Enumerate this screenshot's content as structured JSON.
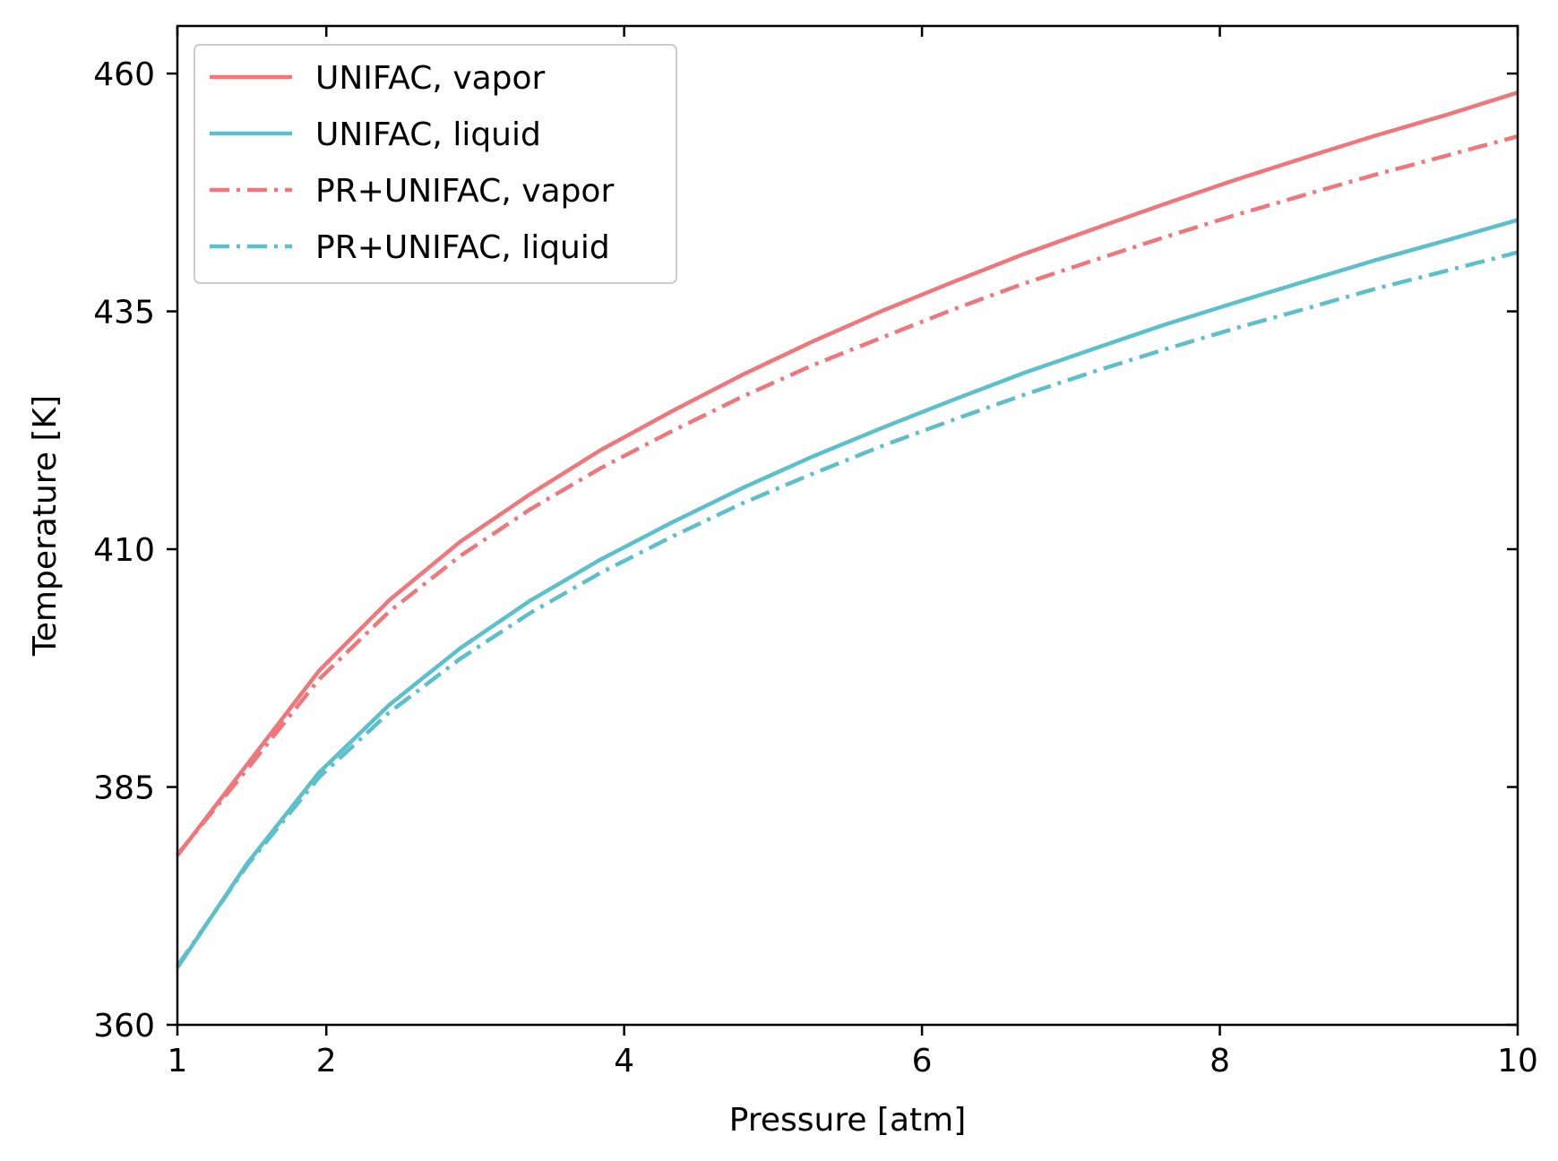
{
  "chart_data": {
    "type": "line",
    "title": "",
    "xlabel": "Pressure [atm]",
    "ylabel": "Temperature [K]",
    "xlim": [
      1,
      10
    ],
    "ylim": [
      360,
      465
    ],
    "xticks": [
      1,
      2,
      4,
      6,
      8,
      10
    ],
    "xtick_labels": [
      "1",
      "2",
      "4",
      "6",
      "8",
      "10"
    ],
    "yticks": [
      360,
      385,
      410,
      435,
      460
    ],
    "ytick_labels": [
      "360",
      "385",
      "410",
      "435",
      "460"
    ],
    "grid": false,
    "legend_position": "top-left",
    "x": [
      1.0,
      1.47,
      1.95,
      2.42,
      2.9,
      3.37,
      3.84,
      4.32,
      4.79,
      5.26,
      5.74,
      6.21,
      6.68,
      7.16,
      7.63,
      8.1,
      8.58,
      9.05,
      9.53,
      10.0
    ],
    "series": [
      {
        "name": "UNIFAC, vapor",
        "color": "#EF767A",
        "style": "solid",
        "values": [
          377.8,
          387.4,
          397.2,
          404.6,
          410.8,
          415.8,
          420.4,
          424.5,
          428.3,
          431.8,
          435.1,
          438.1,
          441.0,
          443.7,
          446.3,
          448.8,
          451.2,
          453.5,
          455.7,
          458.0
        ]
      },
      {
        "name": "UNIFAC, liquid",
        "color": "#5BC0CB",
        "style": "solid",
        "values": [
          366.0,
          377.0,
          386.5,
          393.6,
          399.6,
          404.6,
          408.9,
          412.8,
          416.4,
          419.7,
          422.8,
          425.7,
          428.5,
          431.1,
          433.6,
          435.9,
          438.2,
          440.4,
          442.5,
          444.6
        ]
      },
      {
        "name": "PR+UNIFAC, vapor",
        "color": "#EF767A",
        "style": "dashdot",
        "values": [
          377.9,
          386.9,
          396.3,
          403.4,
          409.3,
          414.2,
          418.5,
          422.4,
          426.0,
          429.3,
          432.3,
          435.2,
          437.9,
          440.4,
          442.8,
          445.1,
          447.3,
          449.4,
          451.4,
          453.4
        ]
      },
      {
        "name": "PR+UNIFAC, liquid",
        "color": "#5BC0CB",
        "style": "dashdot",
        "values": [
          366.2,
          376.8,
          386.0,
          392.8,
          398.5,
          403.3,
          407.5,
          411.3,
          414.8,
          417.9,
          420.9,
          423.6,
          426.2,
          428.7,
          431.0,
          433.2,
          435.3,
          437.4,
          439.3,
          441.2
        ]
      }
    ]
  }
}
